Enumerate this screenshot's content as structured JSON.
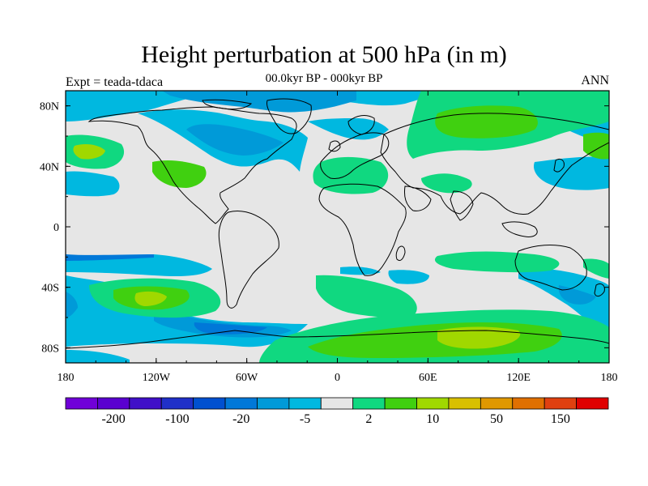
{
  "header": {
    "title": "Height perturbation at 500 hPa (in m)",
    "subtitle": "00.0kyr BP - 000kyr BP",
    "left_label": "Expt = teada-tdaca",
    "right_label": "ANN"
  },
  "map": {
    "projection": "cylindrical-equidistant",
    "lon_range": [
      -180,
      180
    ],
    "lat_range": [
      -90,
      90
    ],
    "lat_ticks": [
      {
        "value": 80,
        "label": "80N"
      },
      {
        "value": 40,
        "label": "40N"
      },
      {
        "value": 0,
        "label": "0"
      },
      {
        "value": -40,
        "label": "40S"
      },
      {
        "value": -80,
        "label": "80S"
      }
    ],
    "lon_ticks": [
      {
        "value": -180,
        "label": "180"
      },
      {
        "value": -120,
        "label": "120W"
      },
      {
        "value": -60,
        "label": "60W"
      },
      {
        "value": 0,
        "label": "0"
      },
      {
        "value": 60,
        "label": "60E"
      },
      {
        "value": 120,
        "label": "120E"
      },
      {
        "value": 180,
        "label": "180"
      }
    ],
    "background_color": "#e6e6e6"
  },
  "colorbar": {
    "colors": [
      "#7000d8",
      "#5a00d0",
      "#4010c8",
      "#2030c8",
      "#0050d0",
      "#0078d8",
      "#009ad8",
      "#00b8e0",
      "#e6e6e6",
      "#10d880",
      "#40d010",
      "#a0d800",
      "#d8c000",
      "#e09800",
      "#e07000",
      "#e04010",
      "#e00000"
    ],
    "labels": [
      {
        "index": 1,
        "text": "-200"
      },
      {
        "index": 3,
        "text": "-100"
      },
      {
        "index": 5,
        "text": "-20"
      },
      {
        "index": 7,
        "text": "-5"
      },
      {
        "index": 9,
        "text": "2"
      },
      {
        "index": 11,
        "text": "10"
      },
      {
        "index": 13,
        "text": "50"
      },
      {
        "index": 15,
        "text": "150"
      }
    ]
  }
}
